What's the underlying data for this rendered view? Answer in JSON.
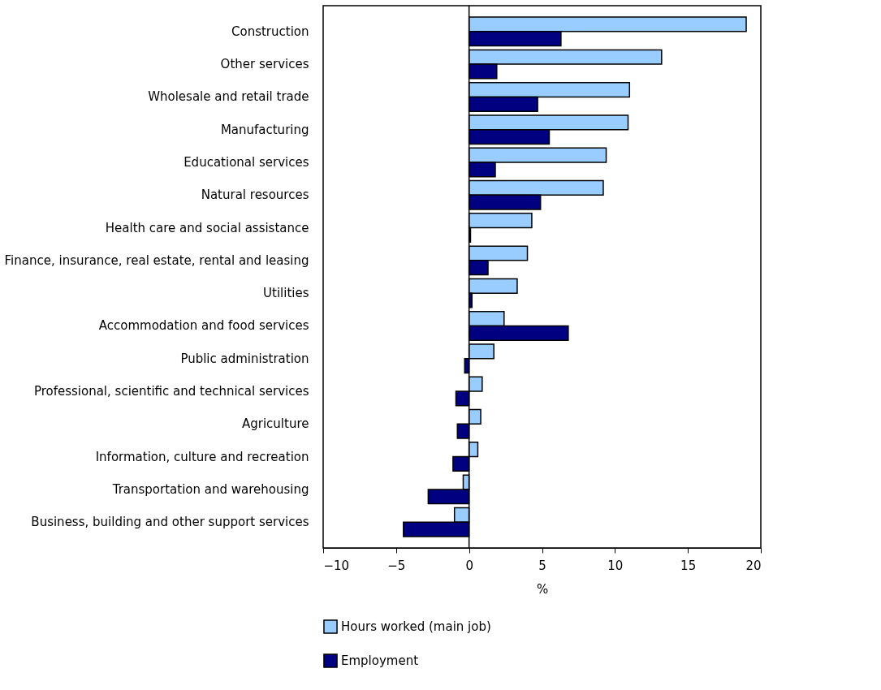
{
  "chart_data": {
    "type": "bar",
    "orientation": "horizontal",
    "xlabel": "%",
    "categories": [
      "Construction",
      "Other services",
      "Wholesale and retail trade",
      "Manufacturing",
      "Educational services",
      "Natural resources",
      "Health care and social assistance",
      "Finance, insurance, real estate, rental and leasing",
      "Utilities",
      "Accommodation and food services",
      "Public administration",
      "Professional, scientific and technical services",
      "Agriculture",
      "Information, culture and recreation",
      "Transportation and warehousing",
      "Business, building and other support services"
    ],
    "series": [
      {
        "name": "Hours worked (main job)",
        "color": "#99ccff",
        "values": [
          19.0,
          13.2,
          11.0,
          10.9,
          9.4,
          9.2,
          4.3,
          4.0,
          3.3,
          2.4,
          1.7,
          0.9,
          0.8,
          0.6,
          -0.4,
          -1.0
        ]
      },
      {
        "name": "Employment",
        "color": "#000080",
        "values": [
          6.3,
          1.9,
          4.7,
          5.5,
          1.8,
          4.9,
          0.1,
          1.3,
          0.2,
          6.8,
          -0.3,
          -0.9,
          -0.8,
          -1.1,
          -2.8,
          -4.5
        ]
      }
    ],
    "xlim": [
      -10,
      20
    ],
    "xticks": [
      -10,
      -5,
      0,
      5,
      10,
      15,
      20
    ],
    "ref_lines": [
      {
        "axis": "x",
        "value": 0
      }
    ],
    "grid": false,
    "legend": "bottom"
  }
}
